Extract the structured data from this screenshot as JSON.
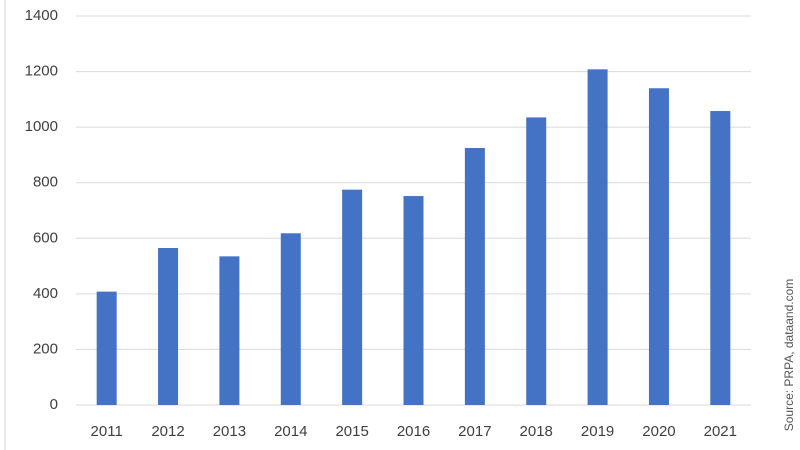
{
  "chart_data": {
    "type": "bar",
    "categories": [
      "2011",
      "2012",
      "2013",
      "2014",
      "2015",
      "2016",
      "2017",
      "2018",
      "2019",
      "2020",
      "2021"
    ],
    "values": [
      408,
      565,
      535,
      618,
      775,
      752,
      925,
      1035,
      1208,
      1140,
      1058
    ],
    "color": "#4472c4",
    "ylim": [
      0,
      1400
    ],
    "yticks": [
      0,
      200,
      400,
      600,
      800,
      1000,
      1200,
      1400
    ],
    "grid": true,
    "source": "Source: PRPA, dataand.com"
  }
}
